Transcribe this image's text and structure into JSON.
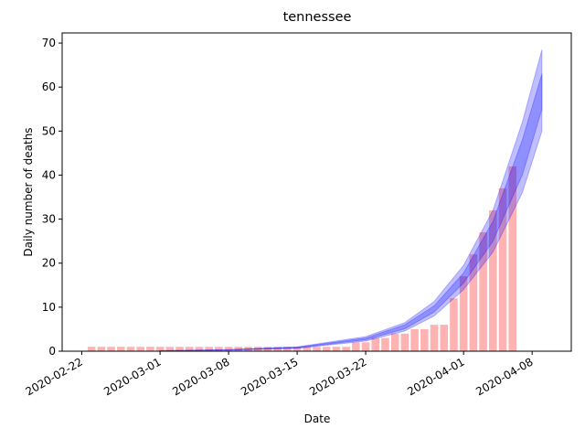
{
  "chart_data": {
    "type": "bar_band",
    "title": "tennessee",
    "xlabel": "Date",
    "ylabel": "Daily number of deaths",
    "x": [
      "2020-02-23",
      "2020-02-24",
      "2020-02-25",
      "2020-02-26",
      "2020-02-27",
      "2020-02-28",
      "2020-02-29",
      "2020-03-01",
      "2020-03-02",
      "2020-03-03",
      "2020-03-04",
      "2020-03-05",
      "2020-03-06",
      "2020-03-07",
      "2020-03-08",
      "2020-03-09",
      "2020-03-10",
      "2020-03-11",
      "2020-03-12",
      "2020-03-13",
      "2020-03-14",
      "2020-03-15",
      "2020-03-16",
      "2020-03-17",
      "2020-03-18",
      "2020-03-19",
      "2020-03-20",
      "2020-03-21",
      "2020-03-22",
      "2020-03-23",
      "2020-03-24",
      "2020-03-25",
      "2020-03-26",
      "2020-03-27",
      "2020-03-28",
      "2020-03-29",
      "2020-03-30",
      "2020-03-31",
      "2020-04-01",
      "2020-04-02",
      "2020-04-03",
      "2020-04-04",
      "2020-04-05",
      "2020-04-06"
    ],
    "values": [
      1,
      1,
      1,
      1,
      1,
      1,
      1,
      1,
      1,
      1,
      1,
      1,
      1,
      1,
      1,
      1,
      1,
      1,
      1,
      1,
      1,
      1,
      1,
      1,
      1,
      1,
      1,
      2,
      2,
      3,
      3,
      4,
      4,
      5,
      5,
      6,
      6,
      12,
      17,
      22,
      27,
      32,
      37,
      42
    ],
    "color": "#ff0000",
    "alpha": 0.3,
    "band_x": [
      "2020-03-01",
      "2020-03-08",
      "2020-03-15",
      "2020-03-22",
      "2020-03-26",
      "2020-03-29",
      "2020-04-01",
      "2020-04-04",
      "2020-04-07",
      "2020-04-09"
    ],
    "bands": [
      {
        "color": "#0000ff",
        "alpha": 0.25,
        "lower": [
          0.08,
          0.25,
          0.65,
          2.3,
          4.6,
          8,
          14,
          22.5,
          36,
          50
        ],
        "upper": [
          0.13,
          0.38,
          1.0,
          3.3,
          6.5,
          11.3,
          19.5,
          32,
          52,
          68.5
        ]
      },
      {
        "color": "#0000ff",
        "alpha": 0.25,
        "lower": [
          0.09,
          0.28,
          0.72,
          2.6,
          5.1,
          8.9,
          15.5,
          25,
          40,
          55
        ],
        "upper": [
          0.11,
          0.33,
          0.9,
          3.0,
          6.0,
          10.3,
          17.8,
          29.5,
          48,
          63
        ]
      }
    ],
    "xlim": [
      "2020-02-20",
      "2020-04-12"
    ],
    "xticks": [
      "2020-02-22",
      "2020-03-01",
      "2020-03-08",
      "2020-03-15",
      "2020-03-22",
      "2020-04-01",
      "2020-04-08"
    ],
    "ylim": [
      0,
      72.3
    ],
    "yticks": [
      0,
      10,
      20,
      30,
      40,
      50,
      60,
      70
    ]
  }
}
